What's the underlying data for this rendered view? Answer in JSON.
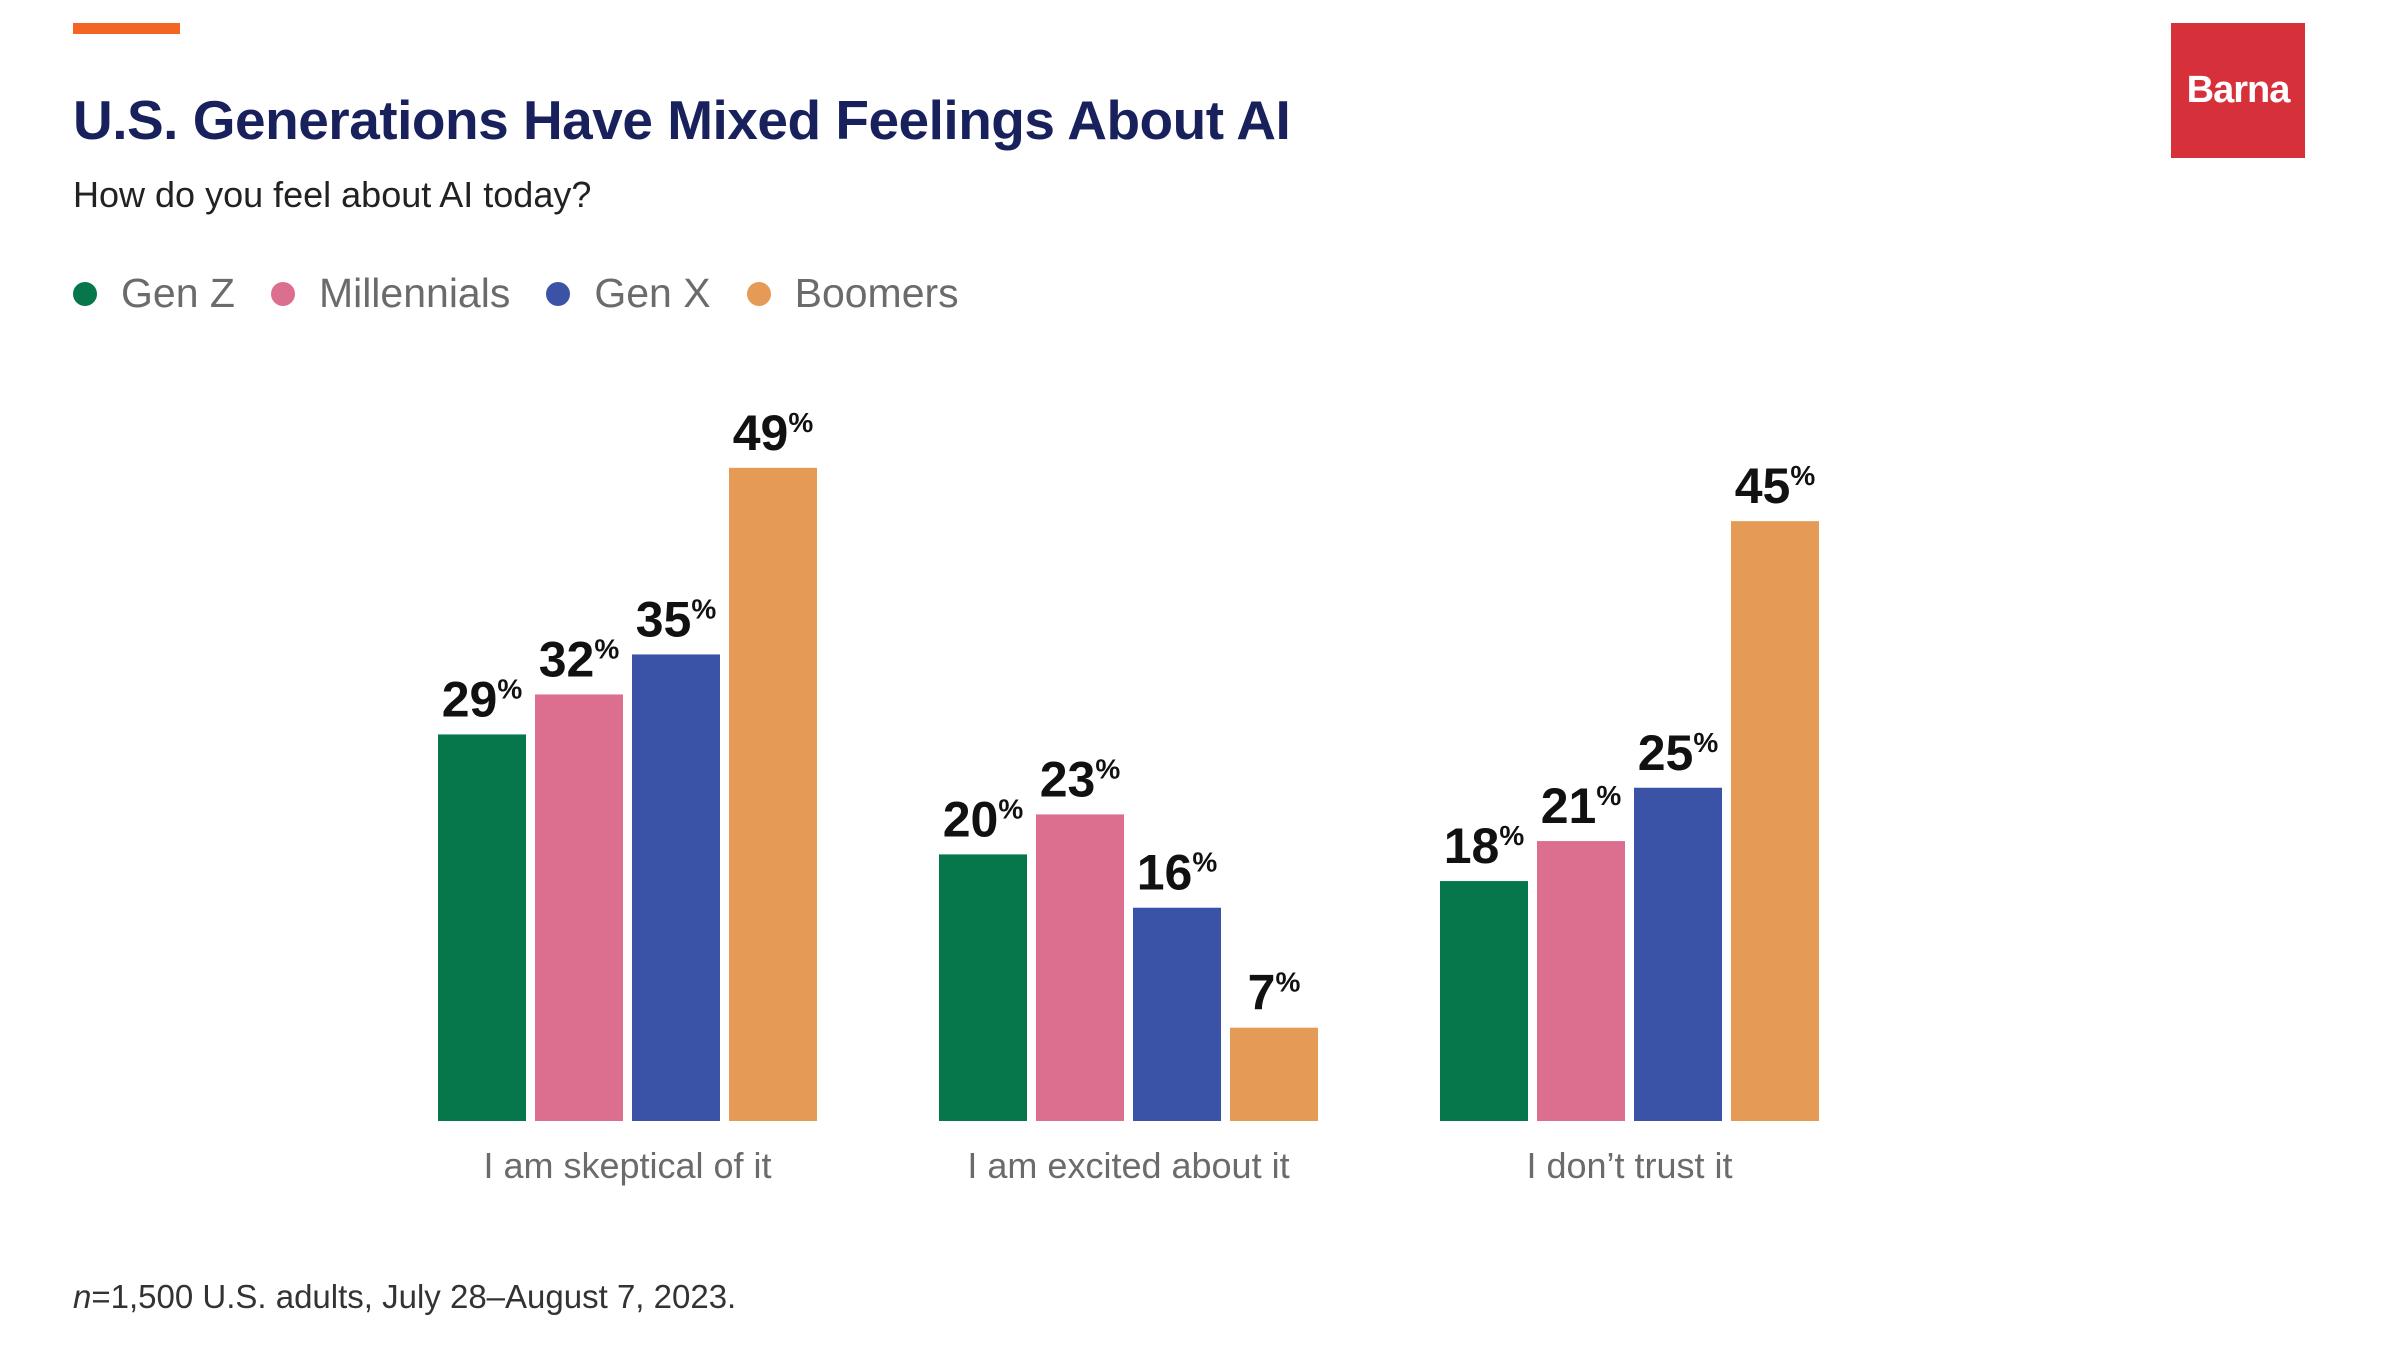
{
  "header": {
    "title": "U.S. Generations Have Mixed Feelings About AI",
    "subtitle": "How do you feel about AI today?"
  },
  "logo": {
    "text": "Barna",
    "color": "#d6303a"
  },
  "colors": {
    "accent": "#f26522",
    "title": "#19215c"
  },
  "footnote": {
    "n": "n",
    "text": "=1,500 U.S. adults, July 28–August 7, 2023."
  },
  "chart_data": {
    "type": "bar",
    "title": "U.S. Generations Have Mixed Feelings About AI",
    "subtitle": "How do you feel about AI today?",
    "categories": [
      "I am skeptical of it",
      "I am excited about it",
      "I don’t trust it"
    ],
    "series": [
      {
        "name": "Gen Z",
        "color": "#05774b",
        "values": [
          29,
          20,
          18
        ]
      },
      {
        "name": "Millennials",
        "color": "#dc6f8f",
        "values": [
          32,
          23,
          21
        ]
      },
      {
        "name": "Gen X",
        "color": "#3b53a7",
        "values": [
          35,
          16,
          25
        ]
      },
      {
        "name": "Boomers",
        "color": "#e59b55",
        "values": [
          49,
          7,
          45
        ]
      }
    ],
    "value_suffix": "%",
    "xlabel": "",
    "ylabel": "",
    "ylim": [
      0,
      49
    ],
    "grid": false,
    "legend": "top-left"
  }
}
